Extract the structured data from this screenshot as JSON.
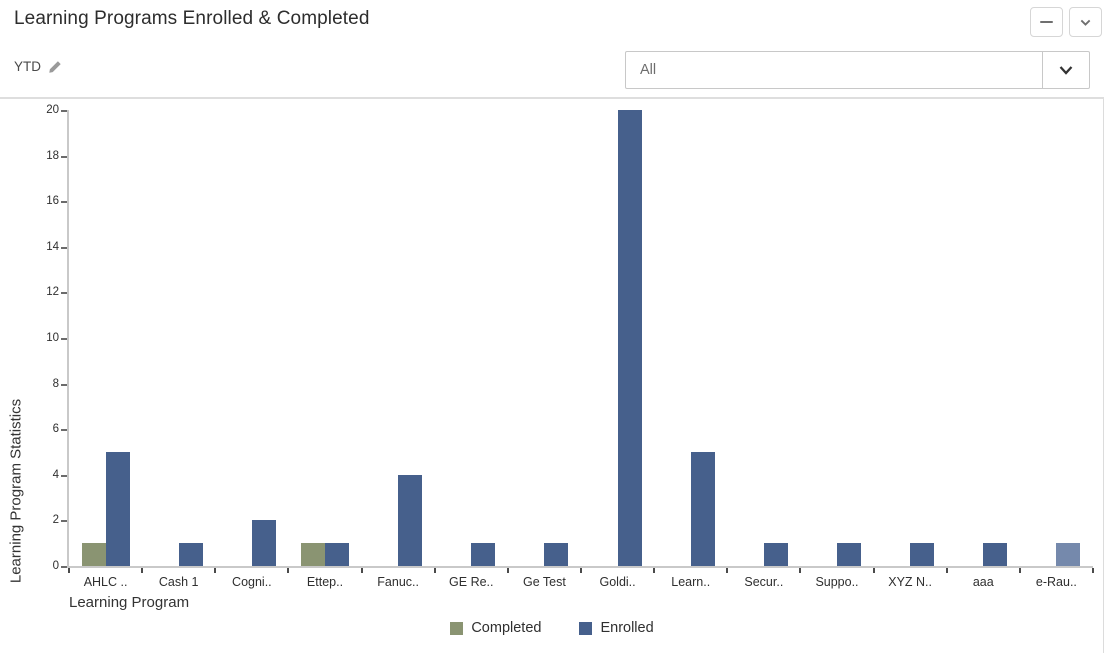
{
  "widget": {
    "title": "Learning Programs Enrolled & Completed",
    "period_label": "YTD"
  },
  "filter": {
    "value": "All"
  },
  "chart_data": {
    "type": "bar",
    "title": "Learning Programs Enrolled & Completed",
    "xlabel": "Learning Program",
    "ylabel": "Learning Program Statistics",
    "ylim": [
      0,
      20
    ],
    "ytick_step": 2,
    "grid": false,
    "legend_position": "bottom",
    "categories": [
      "AHLC ..",
      "Cash 1",
      "Cogni..",
      "Ettep..",
      "Fanuc..",
      "GE Re..",
      "Ge Test",
      "Goldi..",
      "Learn..",
      "Secur..",
      "Suppo..",
      "XYZ N..",
      "aaa",
      "e-Rau.."
    ],
    "series": [
      {
        "name": "Completed",
        "color": "#8a9472",
        "values": [
          1,
          0,
          0,
          1,
          0,
          0,
          0,
          0,
          0,
          0,
          0,
          0,
          0,
          0
        ]
      },
      {
        "name": "Enrolled",
        "color": "#46608c",
        "values": [
          5,
          1,
          2,
          1,
          4,
          1,
          1,
          20,
          5,
          1,
          1,
          1,
          1,
          1
        ]
      }
    ],
    "highlighted_bar": {
      "series": "Enrolled",
      "category_index": 13,
      "color": "#7589ac"
    }
  }
}
